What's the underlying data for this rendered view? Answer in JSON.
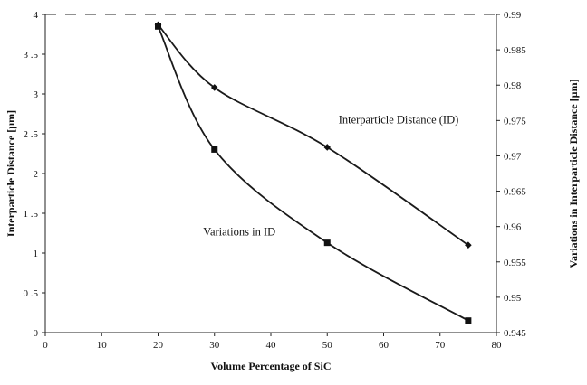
{
  "chart_data": {
    "type": "line",
    "xlabel": "Volume Percentage of SiC",
    "ylabel_left": "Interparticle Distance [µm]",
    "ylabel_right": "Variations in Interparticle Distance [µm]",
    "xlim": [
      0,
      80
    ],
    "ylim_left": [
      0,
      4
    ],
    "ylim_right": [
      0.945,
      0.99
    ],
    "x_ticks": [
      0,
      10,
      20,
      30,
      40,
      50,
      60,
      70,
      80
    ],
    "y_left_ticks": [
      0,
      0.5,
      1,
      1.5,
      2,
      2.5,
      3,
      3.5,
      4
    ],
    "y_right_ticks": [
      0.945,
      0.95,
      0.955,
      0.96,
      0.965,
      0.97,
      0.975,
      0.98,
      0.985,
      0.99
    ],
    "grid": false,
    "series": [
      {
        "axis": "left",
        "marker": "diamond",
        "x": [
          20,
          30,
          50,
          75
        ],
        "y": [
          3.87,
          3.08,
          2.33,
          1.1
        ]
      },
      {
        "axis": "right",
        "marker": "square",
        "x": [
          20,
          30,
          50,
          75
        ],
        "y": [
          0.9883,
          0.9709,
          0.9577,
          0.9467
        ]
      }
    ],
    "annotations": [
      {
        "text": "Interparticle Distance (ID)",
        "x": 52,
        "y": 2.63,
        "axis": "left"
      },
      {
        "text": "Variations in ID",
        "x": 28,
        "y": 1.22,
        "axis": "left"
      }
    ]
  }
}
